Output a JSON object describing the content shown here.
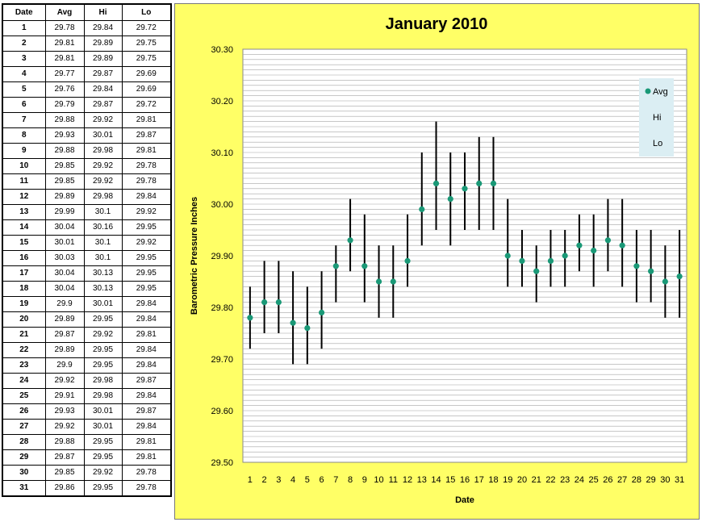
{
  "table": {
    "headers": [
      "Date",
      "Avg",
      "Hi",
      "Lo"
    ],
    "rows": [
      [
        "1",
        "29.78",
        "29.84",
        "29.72"
      ],
      [
        "2",
        "29.81",
        "29.89",
        "29.75"
      ],
      [
        "3",
        "29.81",
        "29.89",
        "29.75"
      ],
      [
        "4",
        "29.77",
        "29.87",
        "29.69"
      ],
      [
        "5",
        "29.76",
        "29.84",
        "29.69"
      ],
      [
        "6",
        "29.79",
        "29.87",
        "29.72"
      ],
      [
        "7",
        "29.88",
        "29.92",
        "29.81"
      ],
      [
        "8",
        "29.93",
        "30.01",
        "29.87"
      ],
      [
        "9",
        "29.88",
        "29.98",
        "29.81"
      ],
      [
        "10",
        "29.85",
        "29.92",
        "29.78"
      ],
      [
        "11",
        "29.85",
        "29.92",
        "29.78"
      ],
      [
        "12",
        "29.89",
        "29.98",
        "29.84"
      ],
      [
        "13",
        "29.99",
        "30.1",
        "29.92"
      ],
      [
        "14",
        "30.04",
        "30.16",
        "29.95"
      ],
      [
        "15",
        "30.01",
        "30.1",
        "29.92"
      ],
      [
        "16",
        "30.03",
        "30.1",
        "29.95"
      ],
      [
        "17",
        "30.04",
        "30.13",
        "29.95"
      ],
      [
        "18",
        "30.04",
        "30.13",
        "29.95"
      ],
      [
        "19",
        "29.9",
        "30.01",
        "29.84"
      ],
      [
        "20",
        "29.89",
        "29.95",
        "29.84"
      ],
      [
        "21",
        "29.87",
        "29.92",
        "29.81"
      ],
      [
        "22",
        "29.89",
        "29.95",
        "29.84"
      ],
      [
        "23",
        "29.9",
        "29.95",
        "29.84"
      ],
      [
        "24",
        "29.92",
        "29.98",
        "29.87"
      ],
      [
        "25",
        "29.91",
        "29.98",
        "29.84"
      ],
      [
        "26",
        "29.93",
        "30.01",
        "29.87"
      ],
      [
        "27",
        "29.92",
        "30.01",
        "29.84"
      ],
      [
        "28",
        "29.88",
        "29.95",
        "29.81"
      ],
      [
        "29",
        "29.87",
        "29.95",
        "29.81"
      ],
      [
        "30",
        "29.85",
        "29.92",
        "29.78"
      ],
      [
        "31",
        "29.86",
        "29.95",
        "29.78"
      ]
    ]
  },
  "colors": {
    "panel_bg": "#ffff66",
    "plot_bg": "#ffffff",
    "gridline": "#a6a6a6",
    "marker": "#1a9977",
    "errorbar": "#000000",
    "legend_bg": "#dbeef3"
  },
  "chart_data": {
    "type": "scatter",
    "title": "January 2010",
    "xlabel": "Date",
    "ylabel": "Barometric Pressure Inches",
    "x": [
      1,
      2,
      3,
      4,
      5,
      6,
      7,
      8,
      9,
      10,
      11,
      12,
      13,
      14,
      15,
      16,
      17,
      18,
      19,
      20,
      21,
      22,
      23,
      24,
      25,
      26,
      27,
      28,
      29,
      30,
      31
    ],
    "series": [
      {
        "name": "Avg",
        "values": [
          29.78,
          29.81,
          29.81,
          29.77,
          29.76,
          29.79,
          29.88,
          29.93,
          29.88,
          29.85,
          29.85,
          29.89,
          29.99,
          30.04,
          30.01,
          30.03,
          30.04,
          30.04,
          29.9,
          29.89,
          29.87,
          29.89,
          29.9,
          29.92,
          29.91,
          29.93,
          29.92,
          29.88,
          29.87,
          29.85,
          29.86
        ]
      },
      {
        "name": "Hi",
        "values": [
          29.84,
          29.89,
          29.89,
          29.87,
          29.84,
          29.87,
          29.92,
          30.01,
          29.98,
          29.92,
          29.92,
          29.98,
          30.1,
          30.16,
          30.1,
          30.1,
          30.13,
          30.13,
          30.01,
          29.95,
          29.92,
          29.95,
          29.95,
          29.98,
          29.98,
          30.01,
          30.01,
          29.95,
          29.95,
          29.92,
          29.95
        ]
      },
      {
        "name": "Lo",
        "values": [
          29.72,
          29.75,
          29.75,
          29.69,
          29.69,
          29.72,
          29.81,
          29.87,
          29.81,
          29.78,
          29.78,
          29.84,
          29.92,
          29.95,
          29.92,
          29.95,
          29.95,
          29.95,
          29.84,
          29.84,
          29.81,
          29.84,
          29.84,
          29.87,
          29.84,
          29.87,
          29.84,
          29.81,
          29.81,
          29.78,
          29.78
        ]
      }
    ],
    "x_tick_labels": [
      "1",
      "2",
      "3",
      "4",
      "5",
      "6",
      "7",
      "8",
      "9",
      "10",
      "11",
      "12",
      "13",
      "14",
      "15",
      "16",
      "17",
      "18",
      "19",
      "20",
      "21",
      "22",
      "23",
      "24",
      "25",
      "26",
      "27",
      "28",
      "29",
      "30",
      "31"
    ],
    "y_tick_labels": [
      "29.50",
      "29.60",
      "29.70",
      "29.80",
      "29.90",
      "30.00",
      "30.10",
      "30.20",
      "30.30"
    ],
    "ylim": [
      29.5,
      30.3
    ],
    "xlim": [
      0.5,
      31.5
    ],
    "y_major_step": 0.1,
    "y_minor_step": 0.01,
    "grid": true,
    "legend": {
      "position": "right",
      "entries": [
        "Avg",
        "Hi",
        "Lo"
      ]
    }
  }
}
